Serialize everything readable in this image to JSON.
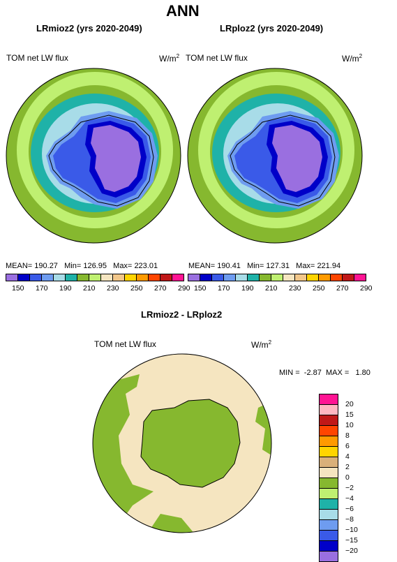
{
  "main_title": "ANN",
  "panels": [
    {
      "title": "LRmioz2 (yrs 2020-2049)",
      "variable": "TOM net LW flux",
      "units": "W/m",
      "units_sup": "2",
      "mean_label": "MEAN=",
      "mean": "190.27",
      "min_label": "Min=",
      "min": "126.95",
      "max_label": "Max=",
      "max": "223.01"
    },
    {
      "title": "LRploz2 (yrs 2020-2049)",
      "variable": "TOM net LW flux",
      "units": "W/m",
      "units_sup": "2",
      "mean_label": "MEAN=",
      "mean": "190.41",
      "min_label": "Min=",
      "min": "127.31",
      "max_label": "Max=",
      "max": "221.94"
    }
  ],
  "top_colorbar": {
    "colors": [
      "#9a6fe0",
      "#0000c8",
      "#3a5ae8",
      "#6e9cf0",
      "#a8dce8",
      "#1fb2a8",
      "#86b82f",
      "#bff071",
      "#f5e5c0",
      "#f2c78a",
      "#ffd400",
      "#ff9a00",
      "#ff4500",
      "#c01818",
      "#ff1493"
    ],
    "labels": [
      "150",
      "170",
      "190",
      "210",
      "230",
      "250",
      "270",
      "290"
    ]
  },
  "diff_panel": {
    "title": "LRmioz2 - LRploz2",
    "variable": "TOM net LW flux",
    "units": "W/m",
    "units_sup": "2",
    "min_label": "MIN =",
    "min": "-2.87",
    "max_label": "MAX =",
    "max": "1.80"
  },
  "diff_colorbar": {
    "colors": [
      "#ff1493",
      "#ffb6c1",
      "#c01818",
      "#ff4500",
      "#ff9a00",
      "#ffd400",
      "#d9b07a",
      "#f5e5c0",
      "#86b82f",
      "#bff071",
      "#1fb2a8",
      "#a8dce8",
      "#6e9cf0",
      "#3a5ae8",
      "#0000c8",
      "#9a6fe0"
    ],
    "labels": [
      "20",
      "15",
      "10",
      "8",
      "6",
      "4",
      "2",
      "0",
      "−2",
      "−4",
      "−6",
      "−8",
      "−10",
      "−15",
      "−20"
    ]
  }
}
